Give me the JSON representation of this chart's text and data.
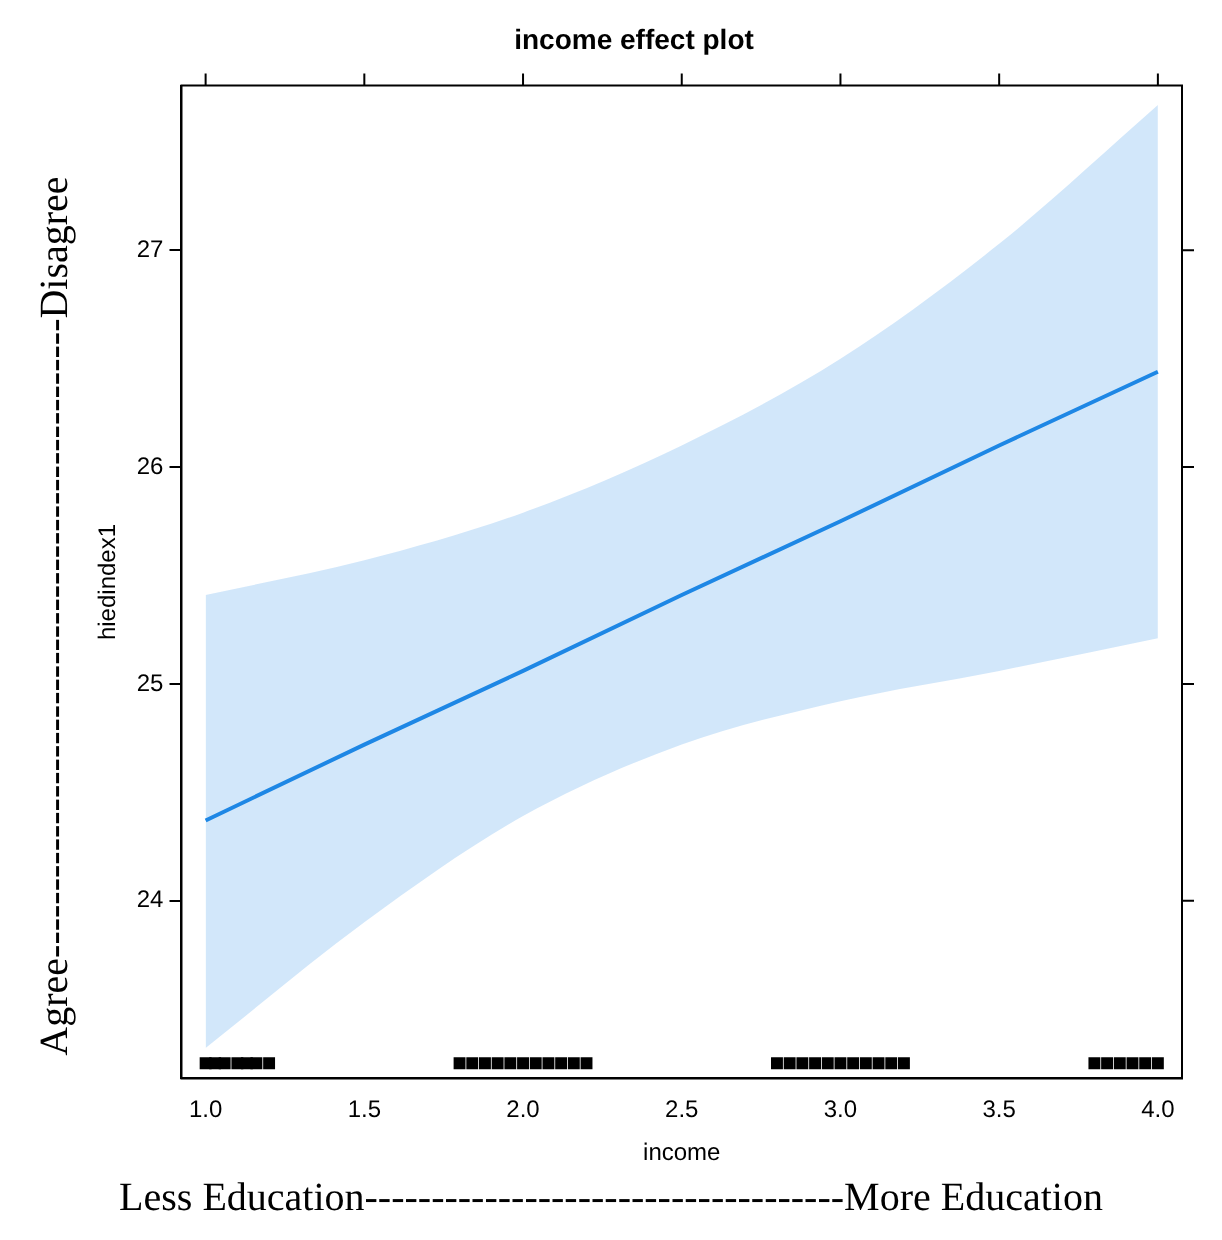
{
  "chart_data": {
    "type": "line",
    "title": "income effect plot",
    "xlabel": "income",
    "ylabel": "hiedindex1",
    "xlim": [
      0.924,
      4.076
    ],
    "xticks": [
      {
        "value": 1,
        "label": "1.0"
      },
      1.5,
      {
        "value": 2,
        "label": "2.0"
      },
      2.5,
      {
        "value": 3,
        "label": "3.0"
      },
      3.5,
      {
        "value": 4,
        "label": "4.0"
      }
    ],
    "ylim": [
      23.18,
      27.76
    ],
    "yticks": [
      24,
      25,
      26,
      27
    ],
    "grid": false,
    "legend": false,
    "series": [
      {
        "marker": "none",
        "color": "#1e88e5",
        "x": [
          1,
          1.5,
          2,
          2.5,
          3,
          3.5,
          4
        ],
        "values": [
          24.37,
          24.72,
          25.06,
          25.41,
          25.75,
          26.1,
          26.44
        ],
        "lower": [
          23.32,
          23.9,
          24.39,
          24.72,
          24.92,
          25.06,
          25.21
        ],
        "upper": [
          25.41,
          25.57,
          25.79,
          26.1,
          26.5,
          27.03,
          27.67
        ]
      },
      {
        "type": "scatter",
        "marker": "square",
        "color": "#000000",
        "x": [
          1,
          1.03,
          1.06,
          1.1,
          1.13,
          1.16,
          1.2,
          1.8,
          1.84,
          1.88,
          1.92,
          1.96,
          2,
          2.04,
          2.08,
          2.12,
          2.16,
          2.2,
          2.8,
          2.84,
          2.88,
          2.92,
          2.96,
          3,
          3.04,
          3.08,
          3.12,
          3.16,
          3.2,
          3.8,
          3.84,
          3.88,
          3.92,
          3.96,
          4
        ],
        "values": [
          23.25,
          23.25,
          23.25,
          23.25,
          23.25,
          23.25,
          23.25,
          23.25,
          23.25,
          23.25,
          23.25,
          23.25,
          23.25,
          23.25,
          23.25,
          23.25,
          23.25,
          23.25,
          23.25,
          23.25,
          23.25,
          23.25,
          23.25,
          23.25,
          23.25,
          23.25,
          23.25,
          23.25,
          23.25,
          23.25,
          23.25,
          23.25,
          23.25,
          23.25,
          23.25
        ]
      }
    ],
    "annotations": [
      "Agree------------------------------------------------Disagree",
      "Less Education------------------------------------More Education"
    ]
  }
}
